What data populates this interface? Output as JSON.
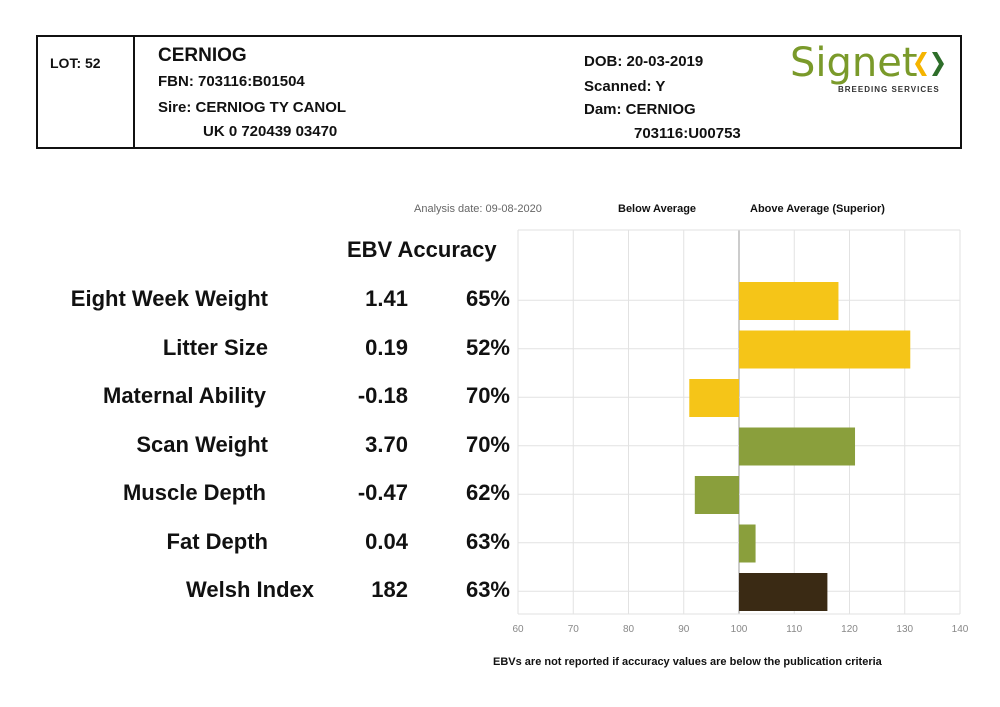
{
  "header": {
    "lot": "LOT: 52",
    "name": "CERNIOG",
    "fbn": "FBN: 703116:B01504",
    "sire": "Sire: CERNIOG TY CANOL",
    "sire_id": "UK 0 720439 03470",
    "dob": "DOB: 20-03-2019",
    "scanned": "Scanned: Y",
    "dam": "Dam: CERNIOG",
    "dam_id": "703116:U00753"
  },
  "logo": {
    "word": "Signet",
    "subtitle": "BREEDING SERVICES",
    "color": "#7a9a2a",
    "icon": "signet-chevrons-icon"
  },
  "analysis_date": "Analysis date: 09-08-2020",
  "below_label": "Below Average",
  "above_label": "Above Average (Superior)",
  "columns": {
    "ebv": "EBV",
    "accuracy": "Accuracy"
  },
  "footer_note": "EBVs are not reported if accuracy values are below the publication criteria",
  "chart_data": {
    "type": "bar",
    "orientation": "horizontal",
    "baseline": 100,
    "xlim": [
      60,
      140
    ],
    "xticks": [
      60,
      70,
      80,
      90,
      100,
      110,
      120,
      130,
      140
    ],
    "grid": true,
    "categories": [
      "Eight Week Weight",
      "Litter Size",
      "Maternal Ability",
      "Scan Weight",
      "Muscle Depth",
      "Fat Depth",
      "Welsh Index"
    ],
    "ebv": [
      "1.41",
      "0.19",
      "-0.18",
      "3.70",
      "-0.47",
      "0.04",
      "182"
    ],
    "accuracy": [
      "65%",
      "52%",
      "70%",
      "70%",
      "62%",
      "63%",
      "63%"
    ],
    "values": [
      118,
      131,
      91,
      121,
      92,
      103,
      116
    ],
    "colors": [
      "#f5c518",
      "#f5c518",
      "#f5c518",
      "#8a9f3c",
      "#8a9f3c",
      "#8a9f3c",
      "#3a2a14"
    ]
  }
}
